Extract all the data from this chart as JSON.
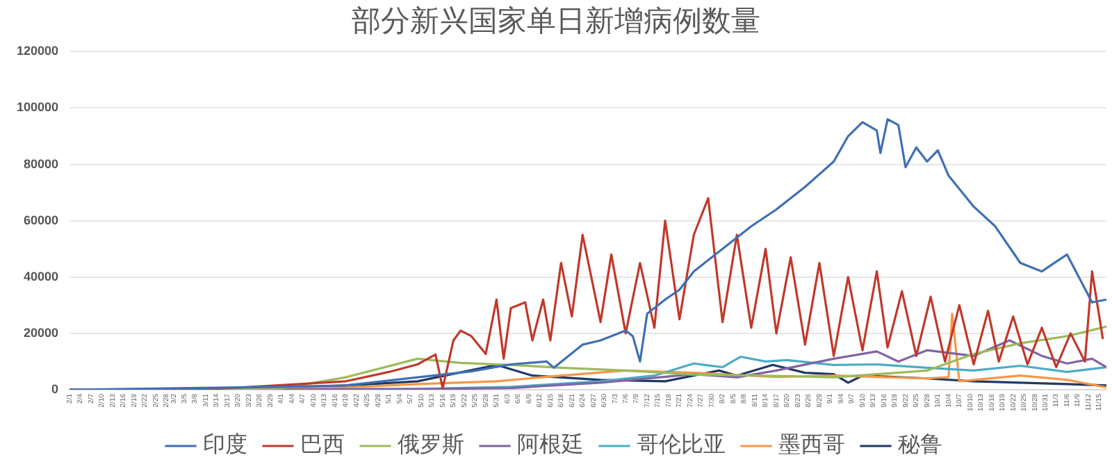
{
  "chart_data": {
    "type": "line",
    "title": "部分新兴国家单日新增病例数量",
    "grid": "y",
    "legend": "bottom",
    "marker": "none",
    "line_style": "solid",
    "xlim": [
      "--02-01",
      "--11-17"
    ],
    "xticks": [
      {
        "value": "--02-01",
        "label": "2/1"
      },
      {
        "value": "--02-04",
        "label": "2/4"
      },
      {
        "value": "--02-07",
        "label": "2/7"
      },
      {
        "value": "--02-10",
        "label": "2/10"
      },
      {
        "value": "--02-13",
        "label": "2/13"
      },
      {
        "value": "--02-16",
        "label": "2/16"
      },
      {
        "value": "--02-19",
        "label": "2/19"
      },
      {
        "value": "--02-22",
        "label": "2/22"
      },
      {
        "value": "--02-25",
        "label": "2/25"
      },
      {
        "value": "--02-28",
        "label": "2/28"
      },
      {
        "value": "--03-02",
        "label": "3/2"
      },
      {
        "value": "--03-05",
        "label": "3/5"
      },
      {
        "value": "--03-08",
        "label": "3/8"
      },
      {
        "value": "--03-11",
        "label": "3/11"
      },
      {
        "value": "--03-14",
        "label": "3/14"
      },
      {
        "value": "--03-17",
        "label": "3/17"
      },
      {
        "value": "--03-20",
        "label": "3/20"
      },
      {
        "value": "--03-23",
        "label": "3/23"
      },
      {
        "value": "--03-26",
        "label": "3/26"
      },
      {
        "value": "--03-29",
        "label": "3/29"
      },
      {
        "value": "--04-01",
        "label": "4/1"
      },
      {
        "value": "--04-04",
        "label": "4/4"
      },
      {
        "value": "--04-07",
        "label": "4/7"
      },
      {
        "value": "--04-10",
        "label": "4/10"
      },
      {
        "value": "--04-13",
        "label": "4/13"
      },
      {
        "value": "--04-16",
        "label": "4/16"
      },
      {
        "value": "--04-19",
        "label": "4/19"
      },
      {
        "value": "--04-22",
        "label": "4/22"
      },
      {
        "value": "--04-25",
        "label": "4/25"
      },
      {
        "value": "--04-28",
        "label": "4/28"
      },
      {
        "value": "--05-01",
        "label": "5/1"
      },
      {
        "value": "--05-04",
        "label": "5/4"
      },
      {
        "value": "--05-07",
        "label": "5/7"
      },
      {
        "value": "--05-10",
        "label": "5/10"
      },
      {
        "value": "--05-13",
        "label": "5/13"
      },
      {
        "value": "--05-16",
        "label": "5/16"
      },
      {
        "value": "--05-19",
        "label": "5/19"
      },
      {
        "value": "--05-22",
        "label": "5/22"
      },
      {
        "value": "--05-25",
        "label": "5/25"
      },
      {
        "value": "--05-28",
        "label": "5/28"
      },
      {
        "value": "--05-31",
        "label": "5/31"
      },
      {
        "value": "--06-03",
        "label": "6/3"
      },
      {
        "value": "--06-06",
        "label": "6/6"
      },
      {
        "value": "--06-09",
        "label": "6/9"
      },
      {
        "value": "--06-12",
        "label": "6/12"
      },
      {
        "value": "--06-15",
        "label": "6/15"
      },
      {
        "value": "--06-18",
        "label": "6/18"
      },
      {
        "value": "--06-21",
        "label": "6/21"
      },
      {
        "value": "--06-24",
        "label": "6/24"
      },
      {
        "value": "--06-27",
        "label": "6/27"
      },
      {
        "value": "--06-30",
        "label": "6/30"
      },
      {
        "value": "--07-03",
        "label": "7/3"
      },
      {
        "value": "--07-06",
        "label": "7/6"
      },
      {
        "value": "--07-09",
        "label": "7/9"
      },
      {
        "value": "--07-12",
        "label": "7/12"
      },
      {
        "value": "--07-15",
        "label": "7/15"
      },
      {
        "value": "--07-18",
        "label": "7/18"
      },
      {
        "value": "--07-21",
        "label": "7/21"
      },
      {
        "value": "--07-24",
        "label": "7/24"
      },
      {
        "value": "--07-27",
        "label": "7/27"
      },
      {
        "value": "--07-30",
        "label": "7/30"
      },
      {
        "value": "--08-02",
        "label": "8/2"
      },
      {
        "value": "--08-05",
        "label": "8/5"
      },
      {
        "value": "--08-08",
        "label": "8/8"
      },
      {
        "value": "--08-11",
        "label": "8/11"
      },
      {
        "value": "--08-14",
        "label": "8/14"
      },
      {
        "value": "--08-17",
        "label": "8/17"
      },
      {
        "value": "--08-20",
        "label": "8/20"
      },
      {
        "value": "--08-23",
        "label": "8/23"
      },
      {
        "value": "--08-26",
        "label": "8/26"
      },
      {
        "value": "--08-29",
        "label": "8/29"
      },
      {
        "value": "--09-01",
        "label": "9/1"
      },
      {
        "value": "--09-04",
        "label": "9/4"
      },
      {
        "value": "--09-07",
        "label": "9/7"
      },
      {
        "value": "--09-10",
        "label": "9/10"
      },
      {
        "value": "--09-13",
        "label": "9/13"
      },
      {
        "value": "--09-16",
        "label": "9/16"
      },
      {
        "value": "--09-19",
        "label": "9/19"
      },
      {
        "value": "--09-22",
        "label": "9/22"
      },
      {
        "value": "--09-25",
        "label": "9/25"
      },
      {
        "value": "--09-28",
        "label": "9/28"
      },
      {
        "value": "--10-01",
        "label": "10/1"
      },
      {
        "value": "--10-04",
        "label": "10/4"
      },
      {
        "value": "--10-07",
        "label": "10/7"
      },
      {
        "value": "--10-10",
        "label": "10/10"
      },
      {
        "value": "--10-13",
        "label": "10/13"
      },
      {
        "value": "--10-16",
        "label": "10/16"
      },
      {
        "value": "--10-19",
        "label": "10/19"
      },
      {
        "value": "--10-22",
        "label": "10/22"
      },
      {
        "value": "--10-25",
        "label": "10/25"
      },
      {
        "value": "--10-28",
        "label": "10/28"
      },
      {
        "value": "--10-31",
        "label": "10/31"
      },
      {
        "value": "--11-03",
        "label": "11/3"
      },
      {
        "value": "--11-06",
        "label": "11/6"
      },
      {
        "value": "--11-09",
        "label": "11/9"
      },
      {
        "value": "--11-12",
        "label": "11/12"
      },
      {
        "value": "--11-15",
        "label": "11/15"
      }
    ],
    "ylim": [
      0,
      120000
    ],
    "yticks": [
      0,
      20000,
      40000,
      60000,
      80000,
      100000,
      120000
    ],
    "series": [
      {
        "name": "印度",
        "color": "#3f6fb5",
        "x": [
          "--02-01",
          "--03-31",
          "--04-19",
          "--05-09",
          "--05-24",
          "--06-04",
          "--06-14",
          "--06-16",
          "--06-24",
          "--06-29",
          "--07-06",
          "--07-08",
          "--07-10",
          "--07-12",
          "--07-17",
          "--07-21",
          "--07-25",
          "--08-02",
          "--08-10",
          "--08-17",
          "--08-25",
          "--09-02",
          "--09-06",
          "--09-10",
          "--09-14",
          "--09-15",
          "--09-17",
          "--09-20",
          "--09-22",
          "--09-25",
          "--09-28",
          "--10-01",
          "--10-04",
          "--10-11",
          "--10-17",
          "--10-24",
          "--10-30",
          "--11-06",
          "--11-13",
          "--11-17"
        ],
        "values": [
          0,
          1000,
          1500,
          4400,
          6500,
          9000,
          10000,
          7800,
          16000,
          17500,
          21000,
          19000,
          10000,
          27000,
          32000,
          35500,
          42000,
          50000,
          58000,
          64000,
          72000,
          81000,
          90000,
          95000,
          92000,
          84000,
          96000,
          94000,
          79000,
          86000,
          81000,
          85000,
          76000,
          65000,
          58000,
          45000,
          42000,
          48000,
          31000,
          32000
        ]
      },
      {
        "name": "巴西",
        "color": "#c0392b",
        "x": [
          "--02-01",
          "--03-10",
          "--04-19",
          "--05-01",
          "--05-09",
          "--05-14",
          "--05-16",
          "--05-19",
          "--05-21",
          "--05-24",
          "--05-28",
          "--05-31",
          "--06-02",
          "--06-04",
          "--06-08",
          "--06-10",
          "--06-13",
          "--06-15",
          "--06-18",
          "--06-21",
          "--06-24",
          "--06-29",
          "--07-02",
          "--07-06",
          "--07-10",
          "--07-14",
          "--07-17",
          "--07-21",
          "--07-25",
          "--07-29",
          "--08-02",
          "--08-06",
          "--08-10",
          "--08-14",
          "--08-17",
          "--08-21",
          "--08-25",
          "--08-29",
          "--09-02",
          "--09-06",
          "--09-10",
          "--09-14",
          "--09-17",
          "--09-21",
          "--09-25",
          "--09-29",
          "--10-03",
          "--10-07",
          "--10-11",
          "--10-15",
          "--10-18",
          "--10-22",
          "--10-26",
          "--10-30",
          "--11-03",
          "--11-07",
          "--11-11",
          "--11-13",
          "--11-16"
        ],
        "values": [
          0,
          0,
          3000,
          6300,
          9000,
          12500,
          500,
          17500,
          21000,
          19000,
          12700,
          32000,
          11000,
          29000,
          31000,
          17500,
          32000,
          17500,
          45000,
          26000,
          55000,
          24000,
          48000,
          20000,
          45000,
          22000,
          60000,
          25000,
          55000,
          68000,
          24000,
          55000,
          22000,
          50000,
          20000,
          47000,
          16000,
          45000,
          12000,
          40000,
          14000,
          42000,
          15000,
          35000,
          12000,
          33000,
          10000,
          30000,
          9000,
          28000,
          10000,
          26000,
          9000,
          22000,
          8000,
          20000,
          10000,
          42000,
          18000
        ]
      },
      {
        "name": "俄罗斯",
        "color": "#9bbb59",
        "x": [
          "--02-01",
          "--04-01",
          "--04-19",
          "--05-09",
          "--05-21",
          "--06-04",
          "--06-18",
          "--07-06",
          "--07-25",
          "--08-21",
          "--09-02",
          "--09-28",
          "--10-11",
          "--10-24",
          "--11-06",
          "--11-17"
        ],
        "values": [
          0,
          500,
          4400,
          11000,
          9500,
          8800,
          7800,
          6800,
          5400,
          4800,
          4400,
          6800,
          12700,
          16500,
          19000,
          22400
        ]
      },
      {
        "name": "阿根廷",
        "color": "#8064a2",
        "x": [
          "--02-01",
          "--03-20",
          "--05-09",
          "--06-04",
          "--06-29",
          "--07-25",
          "--08-06",
          "--08-17",
          "--09-02",
          "--09-14",
          "--09-20",
          "--09-28",
          "--10-11",
          "--10-21",
          "--10-30",
          "--11-06",
          "--11-13",
          "--11-17"
        ],
        "values": [
          0,
          0,
          200,
          600,
          2500,
          5500,
          4400,
          6800,
          11000,
          13600,
          10000,
          14000,
          12000,
          17500,
          12000,
          9300,
          11000,
          8000
        ]
      },
      {
        "name": "哥伦比亚",
        "color": "#4bacc6",
        "x": [
          "--02-01",
          "--03-20",
          "--05-09",
          "--06-04",
          "--06-29",
          "--07-14",
          "--07-25",
          "--08-02",
          "--08-07",
          "--08-14",
          "--08-20",
          "--09-02",
          "--09-14",
          "--09-28",
          "--10-11",
          "--10-24",
          "--11-06",
          "--11-17"
        ],
        "values": [
          0,
          0,
          300,
          1000,
          3000,
          5000,
          9300,
          8000,
          11700,
          10000,
          10500,
          8800,
          9000,
          7800,
          6800,
          8500,
          6300,
          8000
        ]
      },
      {
        "name": "墨西哥",
        "color": "#f79646",
        "x": [
          "--02-01",
          "--03-20",
          "--04-19",
          "--05-09",
          "--05-31",
          "--06-18",
          "--07-06",
          "--07-25",
          "--08-17",
          "--09-02",
          "--09-28",
          "--10-04",
          "--10-05",
          "--10-07",
          "--10-24",
          "--11-06",
          "--11-17"
        ],
        "values": [
          0,
          0,
          800,
          2000,
          3000,
          5000,
          6800,
          6000,
          4500,
          5000,
          4000,
          4500,
          27000,
          3000,
          5000,
          3500,
          800
        ]
      },
      {
        "name": "秘鲁",
        "color": "#1f3864",
        "x": [
          "--02-01",
          "--03-20",
          "--04-19",
          "--05-09",
          "--05-31",
          "--06-10",
          "--06-29",
          "--07-17",
          "--08-01",
          "--08-06",
          "--08-16",
          "--08-25",
          "--09-02",
          "--09-06",
          "--09-10",
          "--09-28",
          "--10-11",
          "--10-24",
          "--11-06",
          "--11-17"
        ],
        "values": [
          0,
          0,
          1500,
          3000,
          8800,
          5000,
          3500,
          3000,
          6800,
          5000,
          8800,
          6000,
          5500,
          2500,
          5000,
          4000,
          3000,
          2500,
          2000,
          1500
        ]
      }
    ]
  }
}
